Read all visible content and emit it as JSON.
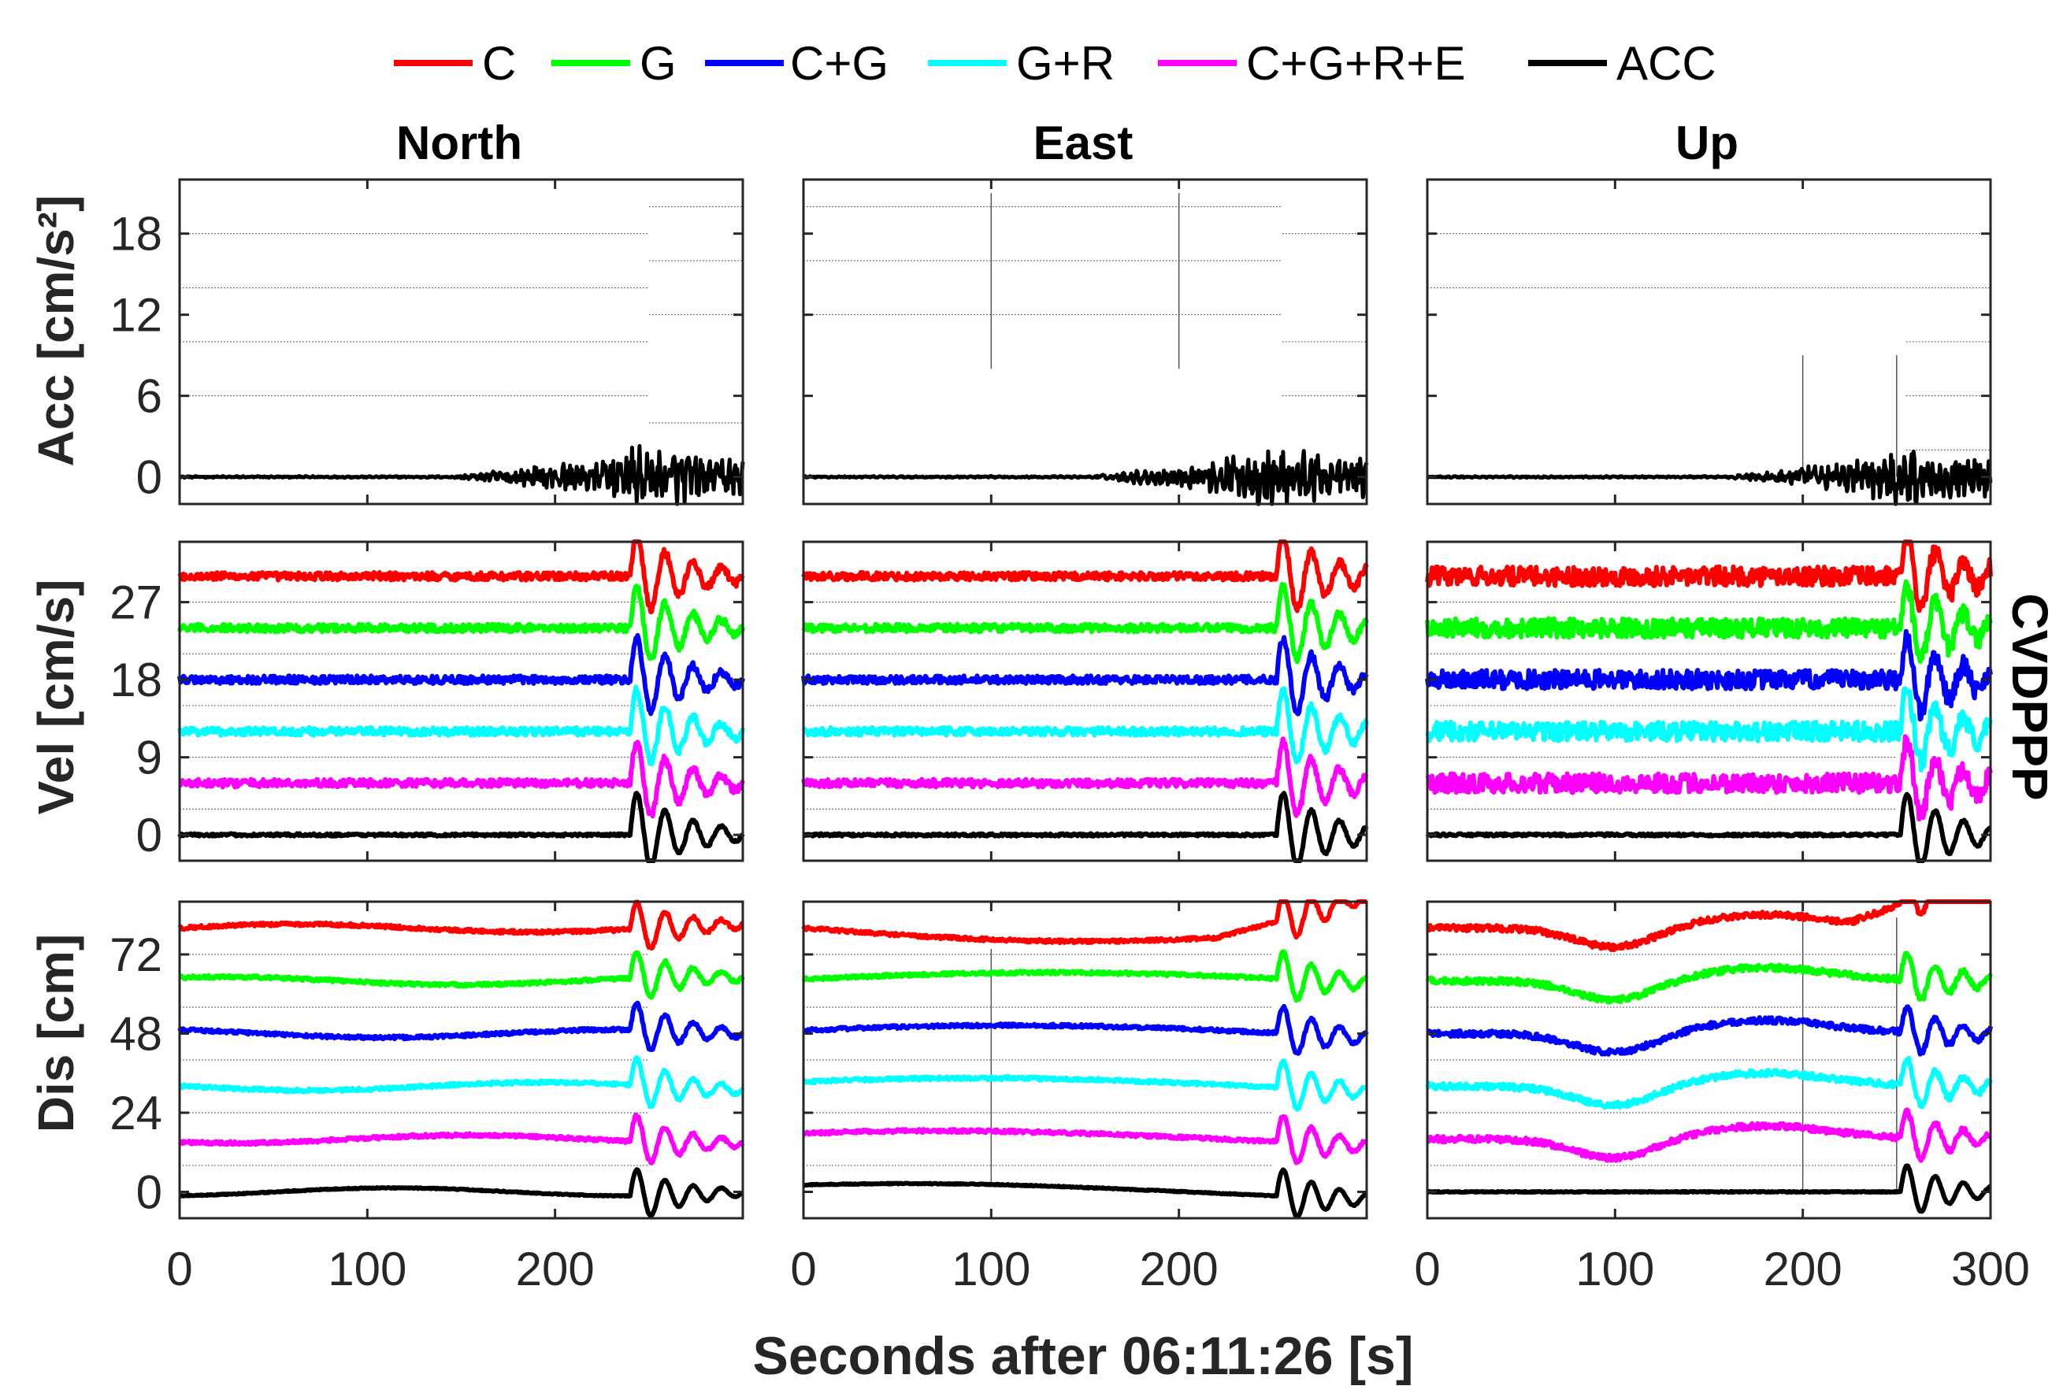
{
  "chart_data": {
    "type": "line",
    "legend": {
      "placement": "top",
      "entries": [
        {
          "label": "C",
          "color": "#ff0000"
        },
        {
          "label": "G",
          "color": "#00ff00"
        },
        {
          "label": "C+G",
          "color": "#0000ff"
        },
        {
          "label": "G+R",
          "color": "#00ffff"
        },
        {
          "label": "C+G+R+E",
          "color": "#ff00ff"
        },
        {
          "label": "ACC",
          "color": "#000000"
        }
      ]
    },
    "columns": [
      "North",
      "East",
      "Up"
    ],
    "xlabel": "Seconds after 06:11:26 [s]",
    "xlim": [
      0,
      300
    ],
    "xticks_left": [
      "0",
      "100",
      "200"
    ],
    "xticks_right": [
      "0",
      "100",
      "200",
      "300"
    ],
    "side_label": "CVDPPP",
    "rows": [
      {
        "key": "acc",
        "ylabel": "Acc [cm/s²]",
        "ylim": [
          -2,
          22
        ],
        "yticks": [
          0,
          6,
          12,
          18
        ],
        "series": [
          "ACC"
        ],
        "offsets": [
          0
        ]
      },
      {
        "key": "vel",
        "ylabel": "Vel [cm/s]",
        "ylim": [
          -3,
          34
        ],
        "yticks": [
          0,
          9,
          18,
          27
        ],
        "series": [
          "C",
          "G",
          "C+G",
          "G+R",
          "C+G+R+E",
          "ACC"
        ],
        "offsets": [
          30,
          24,
          18,
          12,
          6,
          0
        ]
      },
      {
        "key": "dis",
        "ylabel": "Dis [cm]",
        "ylim": [
          -8,
          88
        ],
        "yticks": [
          0,
          24,
          48,
          72
        ],
        "series": [
          "C",
          "G",
          "C+G",
          "G+R",
          "C+G+R+E",
          "ACC"
        ],
        "offsets": [
          80,
          64,
          48,
          32,
          16,
          0
        ]
      }
    ],
    "shaking_onset_s": 240,
    "event_window_s": [
      240,
      300
    ]
  }
}
